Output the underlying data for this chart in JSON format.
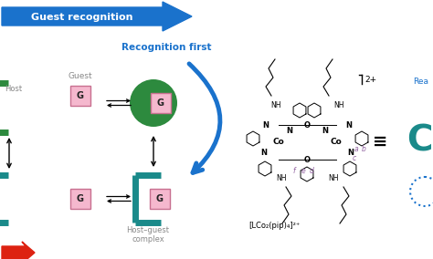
{
  "bg_color": "#ffffff",
  "guest_recognition_text": "Guest recognition",
  "recognition_first_text": "Recognition first",
  "host_guest_complex_text": "Host–guest\ncomplex",
  "guest_label": "Guest",
  "g_label": "G",
  "blue_color": "#1a72cc",
  "green_color": "#2d8a3e",
  "teal_color": "#1a8a8a",
  "pink_color": "#f5b8ce",
  "pink_outline": "#c87090",
  "red_color": "#dd2211",
  "formula_text": "[LCo₂(pip)₄]²⁺",
  "equiv_text": "≡",
  "charge_text": "2+",
  "react_text": "Rea",
  "purple_color": "#9060a0",
  "black": "#000000",
  "gray": "#888888"
}
